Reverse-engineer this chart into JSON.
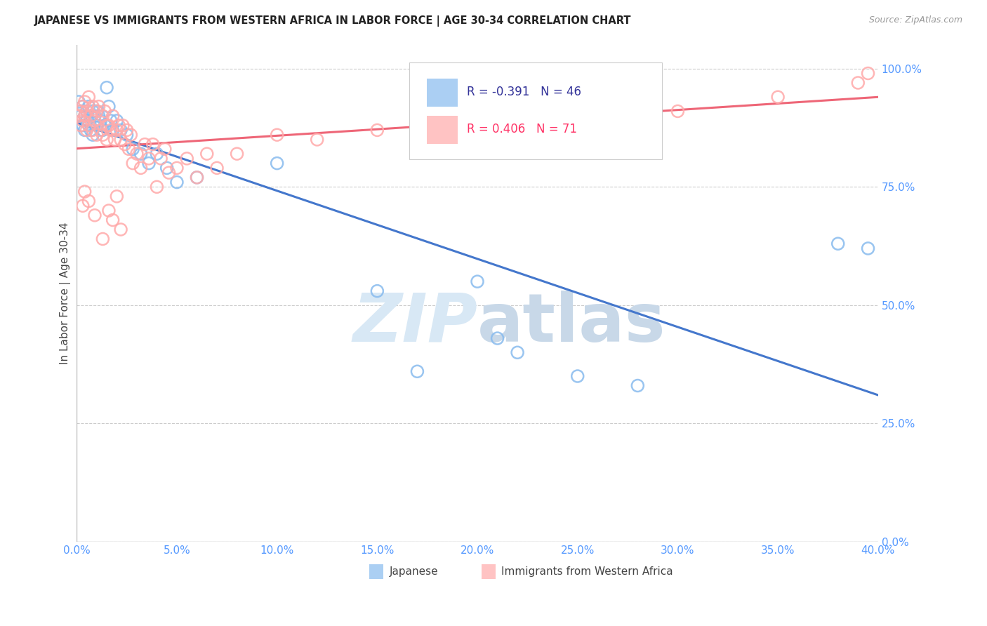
{
  "title": "JAPANESE VS IMMIGRANTS FROM WESTERN AFRICA IN LABOR FORCE | AGE 30-34 CORRELATION CHART",
  "source": "Source: ZipAtlas.com",
  "ylabel": "In Labor Force | Age 30-34",
  "xlim": [
    0.0,
    0.4
  ],
  "ylim": [
    0.0,
    1.05
  ],
  "background_color": "#ffffff",
  "grid_color": "#cccccc",
  "watermark_zip": "ZIP",
  "watermark_atlas": "atlas",
  "blue_color": "#88BBEE",
  "pink_color": "#FFAAAA",
  "blue_line_color": "#4477CC",
  "pink_line_color": "#EE6677",
  "legend_R_blue": "-0.391",
  "legend_N_blue": "46",
  "legend_R_pink": "0.406",
  "legend_N_pink": "71",
  "blue_label": "Japanese",
  "pink_label": "Immigrants from Western Africa",
  "blue_x": [
    0.001,
    0.002,
    0.002,
    0.003,
    0.003,
    0.004,
    0.004,
    0.005,
    0.005,
    0.006,
    0.006,
    0.007,
    0.007,
    0.008,
    0.008,
    0.009,
    0.01,
    0.01,
    0.011,
    0.012,
    0.013,
    0.014,
    0.015,
    0.016,
    0.017,
    0.018,
    0.02,
    0.022,
    0.025,
    0.028,
    0.032,
    0.036,
    0.04,
    0.045,
    0.05,
    0.06,
    0.1,
    0.15,
    0.2,
    0.17,
    0.21,
    0.22,
    0.25,
    0.28,
    0.38,
    0.395
  ],
  "blue_y": [
    0.93,
    0.91,
    0.9,
    0.92,
    0.88,
    0.9,
    0.87,
    0.91,
    0.89,
    0.92,
    0.88,
    0.9,
    0.87,
    0.91,
    0.86,
    0.9,
    0.91,
    0.88,
    0.9,
    0.89,
    0.87,
    0.88,
    0.96,
    0.92,
    0.89,
    0.87,
    0.89,
    0.87,
    0.86,
    0.83,
    0.82,
    0.8,
    0.82,
    0.79,
    0.76,
    0.77,
    0.8,
    0.53,
    0.55,
    0.36,
    0.43,
    0.4,
    0.35,
    0.33,
    0.63,
    0.62
  ],
  "pink_x": [
    0.001,
    0.002,
    0.002,
    0.003,
    0.003,
    0.004,
    0.004,
    0.005,
    0.005,
    0.006,
    0.006,
    0.007,
    0.008,
    0.008,
    0.009,
    0.01,
    0.01,
    0.011,
    0.012,
    0.013,
    0.013,
    0.014,
    0.015,
    0.015,
    0.016,
    0.017,
    0.018,
    0.019,
    0.02,
    0.021,
    0.022,
    0.023,
    0.024,
    0.025,
    0.026,
    0.027,
    0.028,
    0.03,
    0.032,
    0.034,
    0.036,
    0.038,
    0.04,
    0.042,
    0.044,
    0.046,
    0.05,
    0.055,
    0.06,
    0.065,
    0.07,
    0.08,
    0.1,
    0.12,
    0.15,
    0.18,
    0.2,
    0.25,
    0.3,
    0.35,
    0.39,
    0.395,
    0.02,
    0.018,
    0.016,
    0.022,
    0.013,
    0.009,
    0.006,
    0.004,
    0.003
  ],
  "pink_y": [
    0.9,
    0.91,
    0.88,
    0.92,
    0.89,
    0.9,
    0.93,
    0.87,
    0.91,
    0.94,
    0.88,
    0.9,
    0.87,
    0.92,
    0.89,
    0.91,
    0.86,
    0.92,
    0.87,
    0.9,
    0.86,
    0.91,
    0.88,
    0.85,
    0.88,
    0.87,
    0.9,
    0.85,
    0.87,
    0.88,
    0.85,
    0.88,
    0.84,
    0.87,
    0.83,
    0.86,
    0.8,
    0.82,
    0.79,
    0.84,
    0.81,
    0.84,
    0.75,
    0.81,
    0.83,
    0.78,
    0.79,
    0.81,
    0.77,
    0.82,
    0.79,
    0.82,
    0.86,
    0.85,
    0.87,
    0.88,
    0.87,
    0.89,
    0.91,
    0.94,
    0.97,
    0.99,
    0.73,
    0.68,
    0.7,
    0.66,
    0.64,
    0.69,
    0.72,
    0.74,
    0.71
  ]
}
